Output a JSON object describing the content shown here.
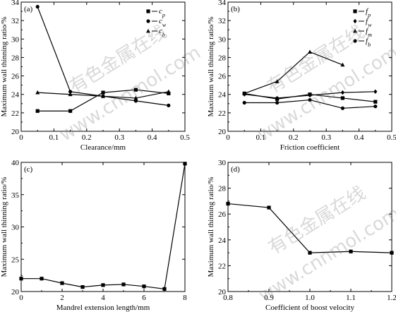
{
  "watermark": {
    "cn": "有色金属在线",
    "url": "www.cnnmol.com"
  },
  "chart_data": [
    {
      "type": "line",
      "panel": "(a)",
      "xlabel": "Clearance/mm",
      "ylabel": "Maximum wall thinning ratio/%",
      "xlim": [
        0,
        0.5
      ],
      "ylim": [
        20,
        34
      ],
      "xticks": [
        0,
        0.1,
        0.2,
        0.3,
        0.4,
        0.5
      ],
      "yticks": [
        20,
        22,
        24,
        26,
        28,
        30,
        32,
        34
      ],
      "xtick_labels": [
        "0",
        "0.1",
        "0.2",
        "0.3",
        "0.4",
        "0.5"
      ],
      "ytick_labels": [
        "20",
        "22",
        "24",
        "26",
        "28",
        "30",
        "32",
        "34"
      ],
      "legend_position": "top-right",
      "series": [
        {
          "name": "c",
          "sub": "p",
          "marker": "square",
          "x": [
            0.05,
            0.15,
            0.25,
            0.35,
            0.45
          ],
          "y": [
            22.2,
            22.2,
            24.2,
            24.5,
            24.1
          ]
        },
        {
          "name": "c",
          "sub": "w",
          "marker": "circle",
          "x": [
            0.05,
            0.15,
            0.25,
            0.35,
            0.45
          ],
          "y": [
            33.5,
            24.3,
            23.8,
            23.3,
            22.8
          ]
        },
        {
          "name": "c",
          "sub": "b",
          "marker": "triangle",
          "x": [
            0.05,
            0.15,
            0.25,
            0.35,
            0.45
          ],
          "y": [
            24.2,
            24.0,
            23.8,
            23.6,
            24.3
          ]
        }
      ]
    },
    {
      "type": "line",
      "panel": "(b)",
      "xlabel": "Friction coefficient",
      "ylabel": "Maximum wall thinning ratio/%",
      "xlim": [
        0,
        0.5
      ],
      "ylim": [
        20,
        34
      ],
      "xticks": [
        0,
        0.1,
        0.2,
        0.3,
        0.4,
        0.5
      ],
      "yticks": [
        20,
        22,
        24,
        26,
        28,
        30,
        32,
        34
      ],
      "xtick_labels": [
        "0",
        "0.1",
        "0.2",
        "0.3",
        "0.4",
        "0.5"
      ],
      "ytick_labels": [
        "20",
        "22",
        "24",
        "26",
        "28",
        "30",
        "32",
        "34"
      ],
      "legend_position": "top-right",
      "series": [
        {
          "name": "f",
          "sub": "p",
          "marker": "square",
          "x": [
            0.05,
            0.15,
            0.25,
            0.35,
            0.45
          ],
          "y": [
            24.1,
            23.5,
            24.0,
            23.6,
            23.2
          ]
        },
        {
          "name": "f",
          "sub": "w",
          "marker": "diamond",
          "x": [
            0.05,
            0.15,
            0.25,
            0.35,
            0.45
          ],
          "y": [
            24.0,
            23.6,
            23.9,
            24.2,
            24.3
          ]
        },
        {
          "name": "f",
          "sub": "m",
          "marker": "triangle",
          "x": [
            0.05,
            0.15,
            0.25,
            0.35
          ],
          "y": [
            24.1,
            25.4,
            28.6,
            27.2
          ]
        },
        {
          "name": "f",
          "sub": "b",
          "marker": "circle",
          "x": [
            0.05,
            0.15,
            0.25,
            0.35,
            0.45
          ],
          "y": [
            23.1,
            23.1,
            23.4,
            22.5,
            22.7
          ]
        }
      ]
    },
    {
      "type": "line",
      "panel": "(c)",
      "xlabel": "Mandrel extension length/mm",
      "ylabel": "Maximum wall thinning ratio/%",
      "xlim": [
        0,
        8
      ],
      "ylim": [
        20,
        40
      ],
      "xticks": [
        0,
        2,
        4,
        6,
        8
      ],
      "yticks": [
        20,
        25,
        30,
        35,
        40
      ],
      "xtick_labels": [
        "0",
        "2",
        "4",
        "6",
        "8"
      ],
      "ytick_labels": [
        "20",
        "25",
        "30",
        "35",
        "40"
      ],
      "series": [
        {
          "marker": "square",
          "x": [
            0,
            1,
            2,
            3,
            4,
            5,
            6,
            7,
            8
          ],
          "y": [
            22.0,
            22.0,
            21.3,
            20.7,
            21.0,
            21.1,
            20.8,
            20.4,
            39.8
          ]
        }
      ]
    },
    {
      "type": "line",
      "panel": "(d)",
      "xlabel": "Coefficient of boost velocity",
      "ylabel": "Maximum wall thinning ratio/%",
      "xlim": [
        0.8,
        1.2
      ],
      "ylim": [
        20,
        30
      ],
      "xticks": [
        0.8,
        0.9,
        1.0,
        1.1,
        1.2
      ],
      "yticks": [
        20,
        22,
        24,
        26,
        28,
        30
      ],
      "xtick_labels": [
        "0.8",
        "0.9",
        "1.0",
        "1.1",
        "1.2"
      ],
      "ytick_labels": [
        "20",
        "22",
        "24",
        "26",
        "28",
        "30"
      ],
      "series": [
        {
          "marker": "square",
          "x": [
            0.8,
            0.9,
            1.0,
            1.1,
            1.2
          ],
          "y": [
            26.8,
            26.5,
            23.0,
            23.1,
            23.0
          ]
        }
      ]
    }
  ]
}
